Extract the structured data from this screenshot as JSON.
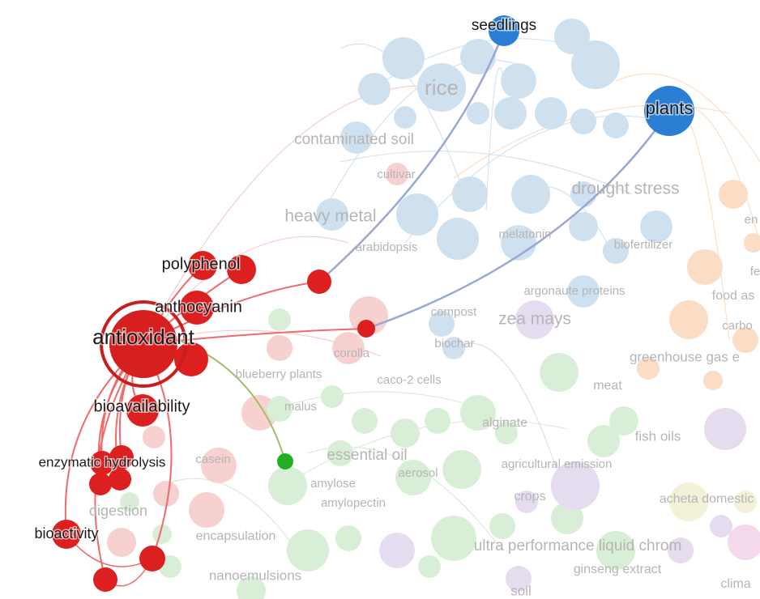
{
  "highlighted_labels": [
    "seedlings",
    "plants",
    "polyphenol",
    "anthocyanin",
    "antioxidant",
    "bioavailability",
    "enzymatic hydrolysis",
    "bioactivity"
  ],
  "faded_labels": [
    "rice",
    "contaminated soil",
    "cultivar",
    "drought stress",
    "heavy metal",
    "arabidopsis",
    "melatonin",
    "biofertilizer",
    "argonaute proteins",
    "food as",
    "compost",
    "zea mays",
    "carbo",
    "corolla",
    "biochar",
    "greenhouse gas e",
    "blueberry plants",
    "caco-2 cells",
    "meat",
    "malus",
    "alginate",
    "fish oils",
    "casein",
    "essential oil",
    "aerosol",
    "agricultural emission",
    "amylose",
    "amylopectin",
    "crops",
    "acheta domestic",
    "digestion",
    "encapsulation",
    "ultra performance liquid chrom",
    "ginseng extract",
    "nanoemulsions",
    "soil",
    "clima",
    "en",
    "fe"
  ]
}
